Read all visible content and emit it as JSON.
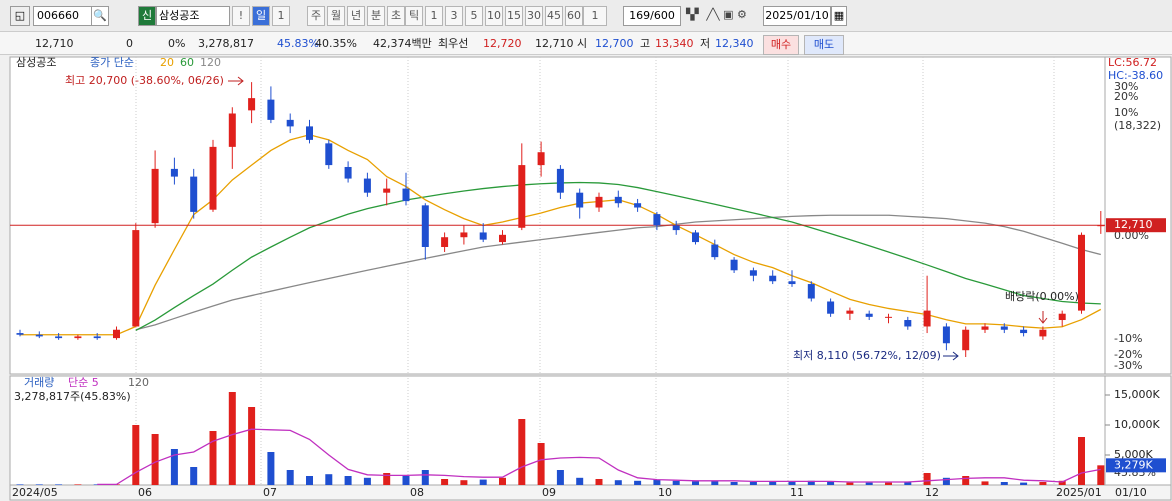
{
  "toolbar": {
    "code": "006660",
    "badge": "신",
    "name": "삼성공조",
    "buttons": [
      "!",
      "일",
      "1",
      "주",
      "월",
      "년",
      "분",
      "초",
      "틱",
      "1",
      "3",
      "5",
      "10",
      "15",
      "30",
      "45",
      "60",
      "1"
    ],
    "count": "169/600",
    "date": "2025/01/10"
  },
  "info_bar": {
    "items": [
      "12,710",
      "0",
      "0%",
      "3,278,817",
      "45.83%",
      "40.35%",
      "42,374백만",
      "최우선",
      "12,720",
      "12,710",
      "시",
      "12,700",
      "고",
      "13,340",
      "저",
      "12,340"
    ],
    "buy": "매수",
    "sell": "매도"
  },
  "chart_data": {
    "type": "candlestick",
    "log_scale": true,
    "legend": {
      "name": "삼성공조",
      "ma_label": "종가 단순",
      "ma": [
        "20",
        "60",
        "120"
      ],
      "ma_colors": [
        "#e8a000",
        "#2a9a3a",
        "#888888"
      ]
    },
    "lc": "LC:56.72",
    "hc": "HC:-38.60",
    "annotations": {
      "high": "최고 20,700 (-38.60%, 06/26)",
      "low": "최저 8,110 (56.72%, 12/09)",
      "dividend": "배당락(0.00%)"
    },
    "right_labels": [
      "30%",
      "20%",
      "10%",
      "(18,322)",
      "0.00%",
      "-10%",
      "-20%",
      "-30%"
    ],
    "last_price": {
      "value": 12710,
      "label": "12,710"
    },
    "up_color": "#e0201c",
    "down_color": "#1f4fd0",
    "ylim": [
      7680,
      22550
    ],
    "x_labels": [
      "2024/05",
      "06",
      "07",
      "08",
      "09",
      "10",
      "11",
      "12",
      "2025/01",
      "01/10"
    ],
    "candles": [
      [
        8800,
        8900,
        8700,
        8750
      ],
      [
        8750,
        8850,
        8650,
        8700
      ],
      [
        8700,
        8800,
        8600,
        8650
      ],
      [
        8650,
        8750,
        8600,
        8700
      ],
      [
        8700,
        8800,
        8600,
        8650
      ],
      [
        8650,
        9000,
        8600,
        8900
      ],
      [
        9000,
        12800,
        9000,
        12500
      ],
      [
        12800,
        16400,
        12600,
        15400
      ],
      [
        15400,
        16000,
        14600,
        15000
      ],
      [
        15000,
        15400,
        13000,
        13300
      ],
      [
        13400,
        17000,
        13300,
        16600
      ],
      [
        16600,
        19000,
        15400,
        18600
      ],
      [
        18800,
        20700,
        18000,
        19600
      ],
      [
        19500,
        20400,
        18000,
        18200
      ],
      [
        18200,
        18600,
        17400,
        17800
      ],
      [
        17800,
        18200,
        16800,
        17000
      ],
      [
        16800,
        17000,
        15400,
        15600
      ],
      [
        15500,
        15800,
        14700,
        14900
      ],
      [
        14900,
        15200,
        14000,
        14200
      ],
      [
        14200,
        14900,
        13600,
        14400
      ],
      [
        14400,
        15200,
        13600,
        13800
      ],
      [
        13600,
        13700,
        11300,
        11800
      ],
      [
        11800,
        12400,
        11600,
        12200
      ],
      [
        12200,
        12700,
        11900,
        12400
      ],
      [
        12400,
        12800,
        12000,
        12100
      ],
      [
        12000,
        12500,
        11900,
        12300
      ],
      [
        12600,
        16800,
        12500,
        15600
      ],
      [
        15600,
        16900,
        15000,
        16300
      ],
      [
        15400,
        15600,
        13900,
        14200
      ],
      [
        14200,
        14400,
        13000,
        13500
      ],
      [
        13500,
        14200,
        13300,
        14000
      ],
      [
        14000,
        14300,
        13500,
        13700
      ],
      [
        13700,
        13900,
        13300,
        13500
      ],
      [
        13200,
        13300,
        12500,
        12700
      ],
      [
        12700,
        12900,
        12300,
        12500
      ],
      [
        12400,
        12500,
        11900,
        12000
      ],
      [
        11900,
        12100,
        11300,
        11400
      ],
      [
        11300,
        11400,
        10800,
        10900
      ],
      [
        10900,
        11000,
        10500,
        10700
      ],
      [
        10700,
        10900,
        10400,
        10500
      ],
      [
        10500,
        10900,
        10300,
        10400
      ],
      [
        10400,
        10500,
        9800,
        9900
      ],
      [
        9800,
        9900,
        9300,
        9400
      ],
      [
        9400,
        9600,
        9200,
        9500
      ],
      [
        9400,
        9500,
        9200,
        9300
      ],
      [
        9300,
        9400,
        9100,
        9300
      ],
      [
        9200,
        9300,
        8900,
        9000
      ],
      [
        9000,
        10700,
        8800,
        9500
      ],
      [
        9000,
        9100,
        8300,
        8500
      ],
      [
        8300,
        9000,
        8110,
        8900
      ],
      [
        8900,
        9100,
        8800,
        9000
      ],
      [
        9000,
        9100,
        8800,
        8900
      ],
      [
        8900,
        9000,
        8700,
        8800
      ],
      [
        8700,
        9000,
        8600,
        8900
      ],
      [
        9200,
        9500,
        9000,
        9400
      ],
      [
        9500,
        12400,
        9400,
        12300
      ],
      [
        12700,
        13340,
        12340,
        12710
      ]
    ],
    "ma_series": [
      {
        "name": "20",
        "color": "#e8a000",
        "values": [
          8750,
          8750,
          8750,
          8750,
          8750,
          8750,
          9000,
          10360,
          11700,
          13180,
          13860,
          14830,
          15600,
          16400,
          17000,
          17300,
          17000,
          16400,
          15900,
          15000,
          14500,
          13860,
          13400,
          13000,
          12700,
          12850,
          13050,
          13250,
          13500,
          13700,
          13780,
          13860,
          13600,
          13180,
          12700,
          12300,
          11900,
          11500,
          11200,
          11000,
          10700,
          10450,
          10150,
          9870,
          9700,
          9570,
          9470,
          9370,
          9210,
          9080,
          9080,
          9050,
          8990,
          8950,
          8990,
          9210,
          9540
        ]
      },
      {
        "name": "60",
        "color": "#2a9a3a",
        "values": [
          null,
          null,
          null,
          null,
          null,
          null,
          8880,
          9200,
          9600,
          10000,
          10400,
          10900,
          11400,
          11800,
          12200,
          12600,
          12900,
          13200,
          13450,
          13650,
          13850,
          14000,
          14150,
          14280,
          14400,
          14500,
          14580,
          14640,
          14680,
          14700,
          14680,
          14600,
          14450,
          14250,
          14050,
          13850,
          13650,
          13450,
          13250,
          13050,
          12850,
          12600,
          12350,
          12100,
          11850,
          11600,
          11350,
          11100,
          10850,
          10600,
          10400,
          10200,
          10000,
          9900,
          9800,
          9750,
          9720
        ]
      },
      {
        "name": "120",
        "color": "#888888",
        "values": [
          null,
          null,
          null,
          null,
          null,
          null,
          8900,
          9050,
          9250,
          9450,
          9650,
          9850,
          10000,
          10150,
          10300,
          10450,
          10600,
          10750,
          10900,
          11050,
          11200,
          11350,
          11500,
          11650,
          11800,
          11900,
          12000,
          12100,
          12200,
          12300,
          12400,
          12500,
          12600,
          12650,
          12750,
          12850,
          12900,
          12950,
          13000,
          13050,
          13100,
          13130,
          13150,
          13150,
          13150,
          13150,
          13100,
          13050,
          13000,
          12900,
          12800,
          12650,
          12450,
          12200,
          11950,
          11700,
          11500
        ]
      }
    ],
    "volume": {
      "title": "거래량",
      "ma_label": "단순 5",
      "ma2": "120",
      "summary": "3,278,817주(45.83%)",
      "ratio": "45.83%",
      "last_label": "3,279K",
      "ylim": [
        0,
        17500
      ],
      "yticks": [
        {
          "value": 15000,
          "label": "15,000K"
        },
        {
          "value": 10000,
          "label": "10,000K"
        },
        {
          "value": 5000,
          "label": "5,000K"
        }
      ],
      "values": [
        100,
        100,
        100,
        100,
        100,
        100,
        10000,
        8500,
        6000,
        3000,
        9000,
        15500,
        13000,
        5500,
        2500,
        1500,
        1800,
        1500,
        1200,
        2000,
        1500,
        2500,
        1000,
        800,
        900,
        1200,
        11000,
        7000,
        2500,
        1200,
        1000,
        800,
        700,
        900,
        700,
        600,
        700,
        500,
        500,
        600,
        500,
        700,
        600,
        400,
        400,
        400,
        500,
        2000,
        1200,
        1500,
        600,
        500,
        400,
        500,
        700,
        8000,
        3278.817
      ],
      "ma5": {
        "color": "#c030c0",
        "values": [
          null,
          null,
          null,
          null,
          100,
          100,
          2100,
          3800,
          5000,
          5500,
          7300,
          8400,
          9300,
          9200,
          9100,
          7600,
          5000,
          2600,
          1700,
          1600,
          1600,
          1700,
          1600,
          1400,
          1300,
          1300,
          3000,
          4200,
          4500,
          4600,
          4500,
          2500,
          1200,
          900,
          800,
          700,
          700,
          700,
          600,
          600,
          600,
          600,
          600,
          500,
          500,
          500,
          500,
          700,
          900,
          1100,
          1200,
          1200,
          800,
          700,
          500,
          2000,
          2600
        ]
      }
    }
  }
}
